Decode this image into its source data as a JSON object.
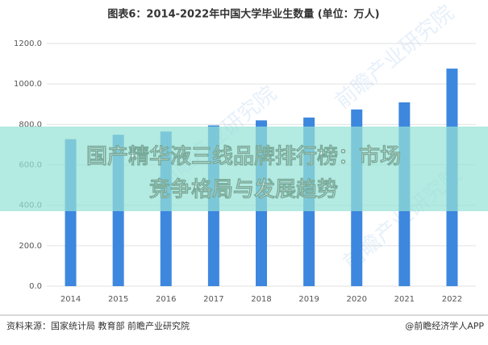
{
  "chart_data": {
    "type": "bar",
    "title": "图表6：2014-2022年中国大学毕业生数量 (单位：万人)",
    "categories": [
      "2014",
      "2015",
      "2016",
      "2017",
      "2018",
      "2019",
      "2020",
      "2021",
      "2022"
    ],
    "values": [
      727,
      749,
      765,
      795,
      820,
      834,
      874,
      909,
      1076
    ],
    "color": "#3d87de",
    "ylim": [
      0,
      1200
    ],
    "yticks": [
      {
        "value": 0,
        "label": "0.0"
      },
      {
        "value": 200,
        "label": "200.0"
      },
      {
        "value": 400,
        "label": "400.0"
      },
      {
        "value": 600,
        "label": "600.0"
      },
      {
        "value": 800,
        "label": "800.0"
      },
      {
        "value": 1000,
        "label": "1000.0"
      },
      {
        "value": 1200,
        "label": "1200.0"
      }
    ],
    "grid": true
  },
  "watermark": "前瞻产业研究院",
  "source": "资料来源：国家统计局 教育部 前瞻产业研究院",
  "brand": "@前瞻经济学人APP",
  "banner": {
    "line1": "国产精华液三线品牌排行榜：市场",
    "line2": "竞争格局与发展趋势"
  }
}
